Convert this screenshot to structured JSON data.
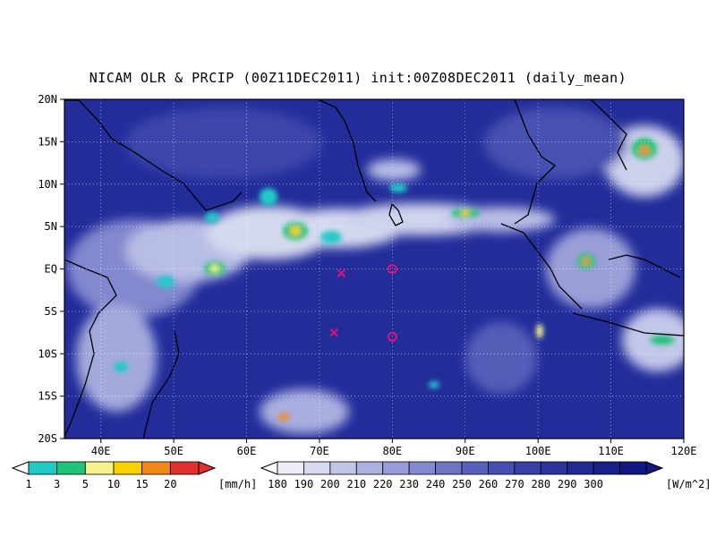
{
  "title": "NICAM OLR & PRCIP (00Z11DEC2011) init:00Z08DEC2011 (daily_mean)",
  "map": {
    "lon_range": [
      35,
      120
    ],
    "lat_range": [
      -20,
      20
    ],
    "lat_ticks": [
      {
        "value": 20,
        "label": "20N"
      },
      {
        "value": 15,
        "label": "15N"
      },
      {
        "value": 10,
        "label": "10N"
      },
      {
        "value": 5,
        "label": "5N"
      },
      {
        "value": 0,
        "label": "EQ"
      },
      {
        "value": -5,
        "label": "5S"
      },
      {
        "value": -10,
        "label": "10S"
      },
      {
        "value": -15,
        "label": "15S"
      },
      {
        "value": -20,
        "label": "20S"
      }
    ],
    "lon_ticks": [
      {
        "value": 40,
        "label": "40E"
      },
      {
        "value": 50,
        "label": "50E"
      },
      {
        "value": 60,
        "label": "60E"
      },
      {
        "value": 70,
        "label": "70E"
      },
      {
        "value": 80,
        "label": "80E"
      },
      {
        "value": 90,
        "label": "90E"
      },
      {
        "value": 100,
        "label": "100E"
      },
      {
        "value": 110,
        "label": "110E"
      },
      {
        "value": 120,
        "label": "120E"
      }
    ],
    "markers": [
      {
        "type": "x",
        "lon": 73,
        "lat": -0.5,
        "color": "#e0107a"
      },
      {
        "type": "circle",
        "lon": 80,
        "lat": 0,
        "color": "#e0107a"
      },
      {
        "type": "x",
        "lon": 72,
        "lat": -7.5,
        "color": "#e0107a"
      },
      {
        "type": "circle",
        "lon": 80,
        "lat": -8,
        "color": "#e0107a"
      }
    ],
    "ocean_color": "#232d9a",
    "cloud_color": "#e9ecf8"
  },
  "precip_legend": {
    "unit": "[mm/h]",
    "labels": [
      "1",
      "3",
      "5",
      "10",
      "15",
      "20"
    ],
    "colors": [
      "#21c9c9",
      "#1fc37a",
      "#f4f48a",
      "#f6d300",
      "#f28a1b",
      "#e03030"
    ]
  },
  "olr_legend": {
    "unit": "[W/m^2]",
    "labels": [
      "180",
      "190",
      "200",
      "210",
      "220",
      "230",
      "240",
      "250",
      "260",
      "270",
      "280",
      "290",
      "300"
    ],
    "colors": [
      "#eeeef8",
      "#d8daf0",
      "#c2c5e8",
      "#adb1e0",
      "#979dd7",
      "#8289ce",
      "#6d74c4",
      "#5960ba",
      "#474fb0",
      "#3740a6",
      "#2b339c",
      "#212a92",
      "#1a2089",
      "#121680"
    ]
  }
}
